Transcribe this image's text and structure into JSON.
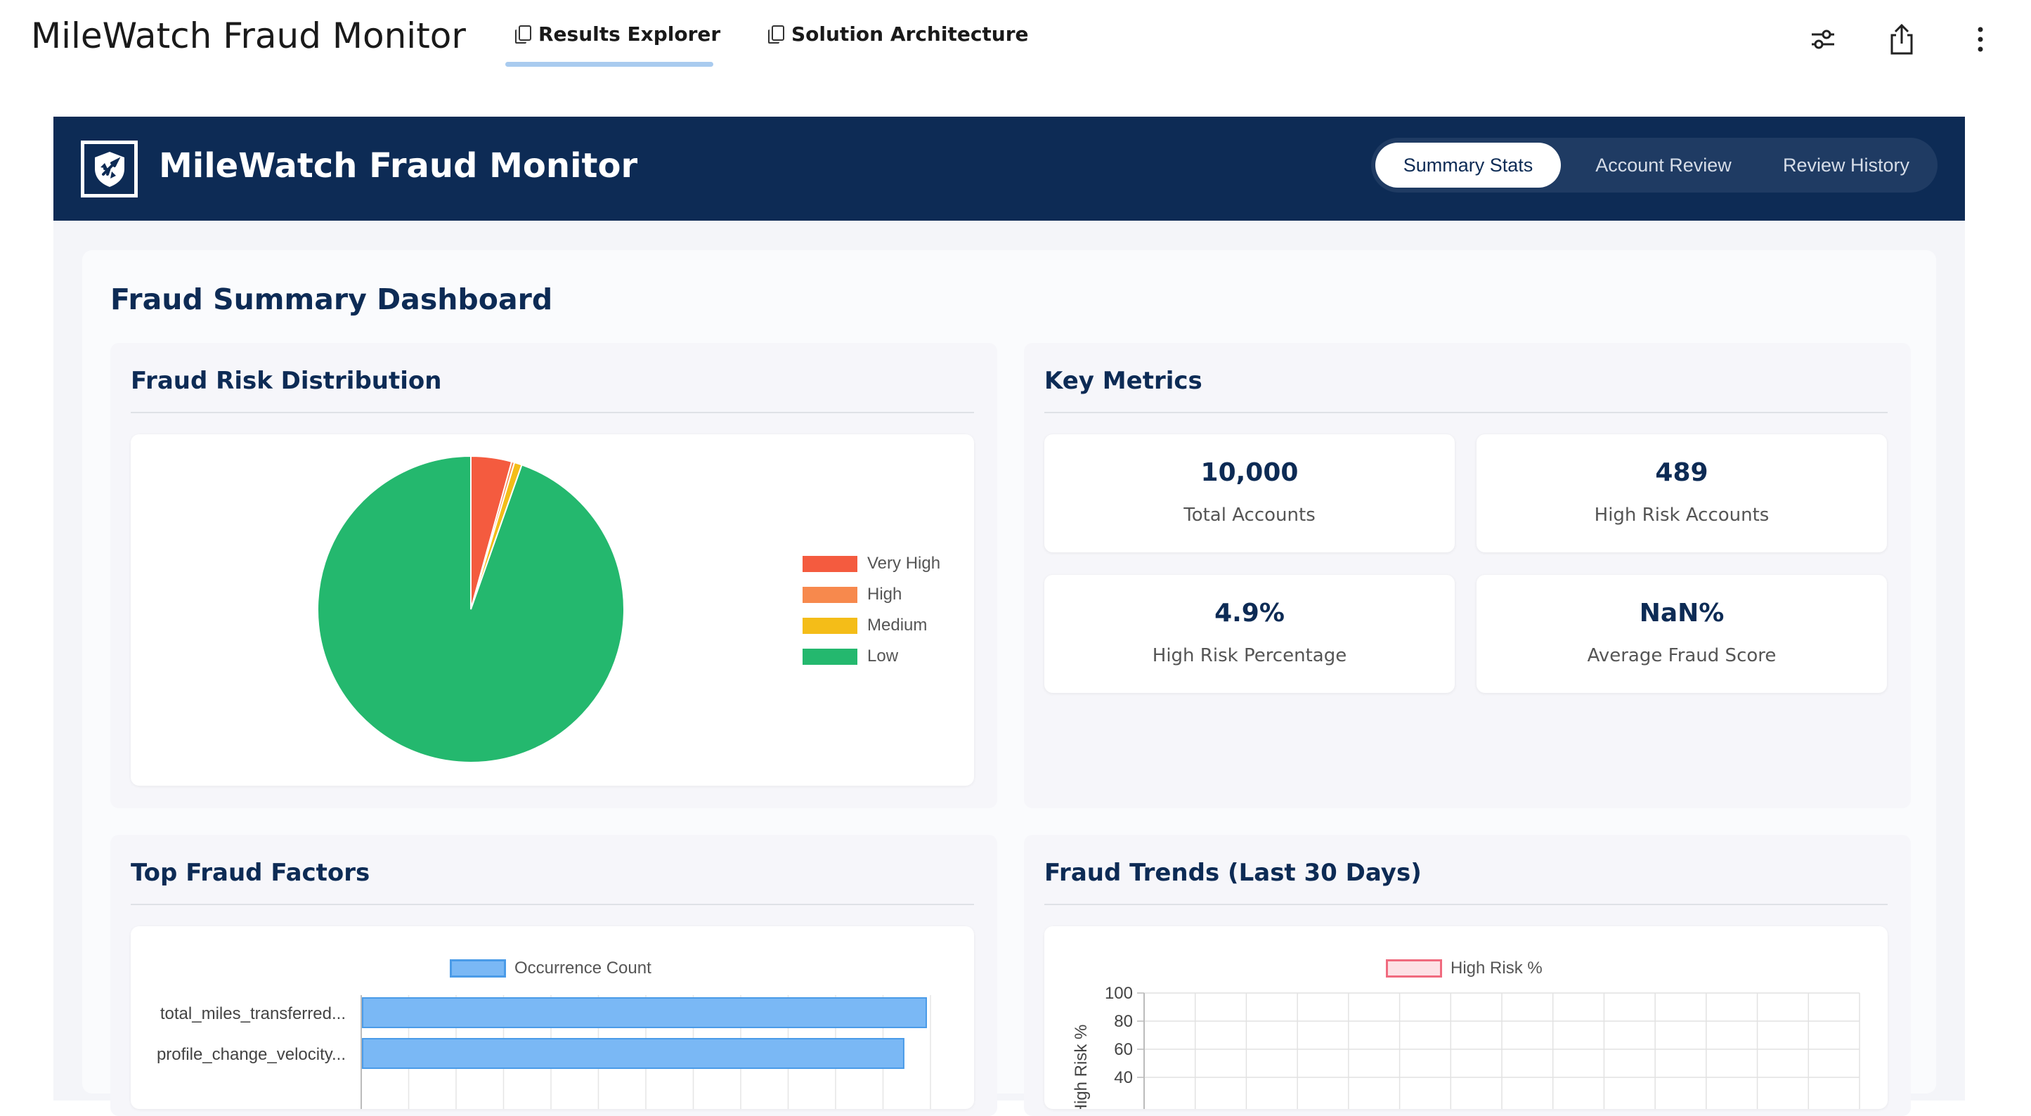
{
  "app": {
    "title": "MileWatch Fraud Monitor",
    "tabs": [
      {
        "label": "Results Explorer",
        "active": true
      },
      {
        "label": "Solution Architecture",
        "active": false
      }
    ],
    "icons": [
      "sliders-icon",
      "share-icon",
      "more-vertical-icon"
    ]
  },
  "header": {
    "brand": "MileWatch Fraud Monitor",
    "logo_icon": "airplane-shield-icon",
    "nav": [
      {
        "label": "Summary Stats",
        "active": true
      },
      {
        "label": "Account Review",
        "active": false
      },
      {
        "label": "Review History",
        "active": false
      }
    ]
  },
  "dashboard": {
    "title": "Fraud Summary Dashboard",
    "risk_card": {
      "title": "Fraud Risk Distribution"
    },
    "metrics_card": {
      "title": "Key Metrics",
      "metrics": [
        {
          "value": "10,000",
          "label": "Total Accounts"
        },
        {
          "value": "489",
          "label": "High Risk Accounts"
        },
        {
          "value": "4.9%",
          "label": "High Risk Percentage"
        },
        {
          "value": "NaN%",
          "label": "Average Fraud Score"
        }
      ]
    },
    "factors_card": {
      "title": "Top Fraud Factors"
    },
    "trends_card": {
      "title": "Fraud Trends (Last 30 Days)"
    }
  },
  "colors": {
    "navy": "#0d2b55",
    "very_high": "#f45b3f",
    "high": "#f7894d",
    "medium": "#f4bd18",
    "low": "#24b86e",
    "bar_fill": "#7ab8f5",
    "bar_border": "#4a9be8",
    "trend_border": "#f06a7e",
    "trend_fill": "#fde1e5"
  },
  "chart_data": [
    {
      "type": "pie",
      "title": "",
      "categories": [
        "Very High",
        "High",
        "Medium",
        "Low"
      ],
      "values": [
        4.3,
        0.3,
        0.8,
        94.6
      ],
      "legend": "right"
    },
    {
      "type": "bar",
      "orientation": "horizontal",
      "categories": [
        "total_miles_transferred...",
        "profile_change_velocity..."
      ],
      "series": [
        {
          "name": "Occurrence Count",
          "values": [
            100,
            96
          ]
        }
      ],
      "legend": "top"
    },
    {
      "type": "line",
      "series": [
        {
          "name": "High Risk %",
          "values": []
        }
      ],
      "ylabel": "High Risk %",
      "yticks": [
        "100",
        "80",
        "60",
        "40"
      ],
      "ylim": [
        0,
        100
      ],
      "grid": true,
      "legend": "top"
    }
  ]
}
